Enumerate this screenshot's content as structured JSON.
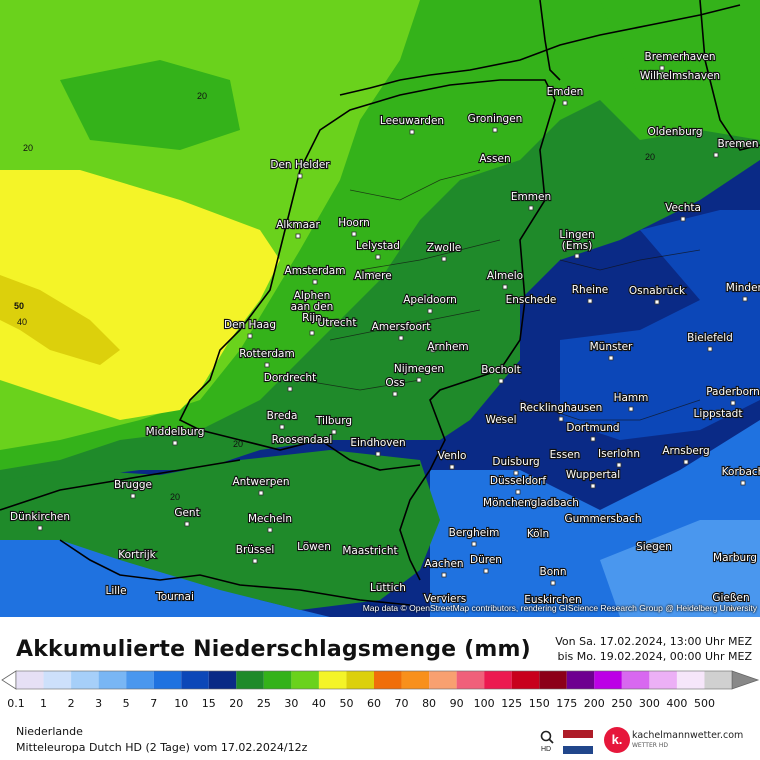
{
  "map": {
    "attribution": "Map data © OpenStreetMap contributors, rendering GIScience Research Group @ Heidelberg University",
    "cities": [
      {
        "name": "Bremerhaven"
      },
      {
        "name": "Wilhelmshaven"
      },
      {
        "name": "Emden"
      },
      {
        "name": "Oldenburg"
      },
      {
        "name": "Bremen"
      },
      {
        "name": "Groningen"
      },
      {
        "name": "Leeuwarden"
      },
      {
        "name": "Assen"
      },
      {
        "name": "Den Helder"
      },
      {
        "name": "Emmen"
      },
      {
        "name": "Vechta"
      },
      {
        "name": "Alkmaar"
      },
      {
        "name": "Hoorn"
      },
      {
        "name": "Lelystad"
      },
      {
        "name": "Zwolle"
      },
      {
        "name": "Lingen (Ems)"
      },
      {
        "name": "Amsterdam"
      },
      {
        "name": "Almere"
      },
      {
        "name": "Almelo"
      },
      {
        "name": "Alphen aan den Rijn"
      },
      {
        "name": "Apeldoorn"
      },
      {
        "name": "Enschede"
      },
      {
        "name": "Rheine"
      },
      {
        "name": "Osnabrück"
      },
      {
        "name": "Minden"
      },
      {
        "name": "Den Haag"
      },
      {
        "name": "Utrecht"
      },
      {
        "name": "Amersfoort"
      },
      {
        "name": "Bielefeld"
      },
      {
        "name": "Arnhem"
      },
      {
        "name": "Münster"
      },
      {
        "name": "Rotterdam"
      },
      {
        "name": "Nijmegen"
      },
      {
        "name": "Dordrecht"
      },
      {
        "name": "Oss"
      },
      {
        "name": "Bocholt"
      },
      {
        "name": "Paderborn"
      },
      {
        "name": "Hamm"
      },
      {
        "name": "Recklinghausen"
      },
      {
        "name": "Lippstadt"
      },
      {
        "name": "Breda"
      },
      {
        "name": "Tilburg"
      },
      {
        "name": "Wesel"
      },
      {
        "name": "Middelburg"
      },
      {
        "name": "Dortmund"
      },
      {
        "name": "Roosendaal"
      },
      {
        "name": "Eindhoven"
      },
      {
        "name": "Iserlohn"
      },
      {
        "name": "Arnsberg"
      },
      {
        "name": "Venlo"
      },
      {
        "name": "Essen"
      },
      {
        "name": "Duisburg"
      },
      {
        "name": "Antwerpen"
      },
      {
        "name": "Düsseldorf"
      },
      {
        "name": "Brugge"
      },
      {
        "name": "Mönchengladbach"
      },
      {
        "name": "Wuppertal"
      },
      {
        "name": "Korbach"
      },
      {
        "name": "Dünkirchen"
      },
      {
        "name": "Gent"
      },
      {
        "name": "Mecheln"
      },
      {
        "name": "Gummersbach"
      },
      {
        "name": "Bergheim"
      },
      {
        "name": "Köln"
      },
      {
        "name": "Löwen"
      },
      {
        "name": "Brüssel"
      },
      {
        "name": "Maastricht"
      },
      {
        "name": "Siegen"
      },
      {
        "name": "Kortrijk"
      },
      {
        "name": "Düren"
      },
      {
        "name": "Marburg"
      },
      {
        "name": "Aachen"
      },
      {
        "name": "Bonn"
      },
      {
        "name": "Lille"
      },
      {
        "name": "Tournai"
      },
      {
        "name": "Lüttich"
      },
      {
        "name": "Gießen"
      },
      {
        "name": "Verviers"
      },
      {
        "name": "Euskirchen"
      }
    ],
    "isolines": [
      "20",
      "20",
      "20",
      "20",
      "20",
      "40",
      "50"
    ]
  },
  "title": "Akkumulierte Niederschlagsmenge (mm)",
  "period_from": "Von Sa. 17.02.2024, 13:00 Uhr MEZ",
  "period_to": "bis Mo. 19.02.2024, 00:00 Uhr MEZ",
  "legend": [
    {
      "label": "0.1",
      "color": "#e6e0f5"
    },
    {
      "label": "1",
      "color": "#cde0fb"
    },
    {
      "label": "2",
      "color": "#a6cff9"
    },
    {
      "label": "3",
      "color": "#79b6f4"
    },
    {
      "label": "5",
      "color": "#4a97ee"
    },
    {
      "label": "7",
      "color": "#1f72e0"
    },
    {
      "label": "10",
      "color": "#0c47b8"
    },
    {
      "label": "15",
      "color": "#0a2a86"
    },
    {
      "label": "20",
      "color": "#1f8a2a"
    },
    {
      "label": "25",
      "color": "#34b21a"
    },
    {
      "label": "30",
      "color": "#6ad21c"
    },
    {
      "label": "40",
      "color": "#f4f428"
    },
    {
      "label": "50",
      "color": "#dcd00c"
    },
    {
      "label": "60",
      "color": "#f06e0a"
    },
    {
      "label": "70",
      "color": "#f8901c"
    },
    {
      "label": "80",
      "color": "#f8a070"
    },
    {
      "label": "90",
      "color": "#f0607a"
    },
    {
      "label": "100",
      "color": "#ec1a50"
    },
    {
      "label": "125",
      "color": "#c8001c"
    },
    {
      "label": "150",
      "color": "#8c0018"
    },
    {
      "label": "175",
      "color": "#6e0090"
    },
    {
      "label": "200",
      "color": "#bc00e6"
    },
    {
      "label": "250",
      "color": "#d868f0"
    },
    {
      "label": "300",
      "color": "#ecb0f6"
    },
    {
      "label": "400",
      "color": "#f6e6fa"
    },
    {
      "label": "500",
      "color": "#d0d0d0"
    }
  ],
  "footer": {
    "region": "Niederlande",
    "model": "Mitteleuropa Dutch HD (2 Tage) vom 17.02.2024/12z"
  },
  "brand": {
    "name": "kachelmannwetter.com",
    "sub": "WETTER HD",
    "hd_badge": "HD",
    "logo_letter": "k."
  },
  "colors": {
    "brand": "#e6173b",
    "water": "#1541a7",
    "sea_blue": "#0e3596"
  }
}
